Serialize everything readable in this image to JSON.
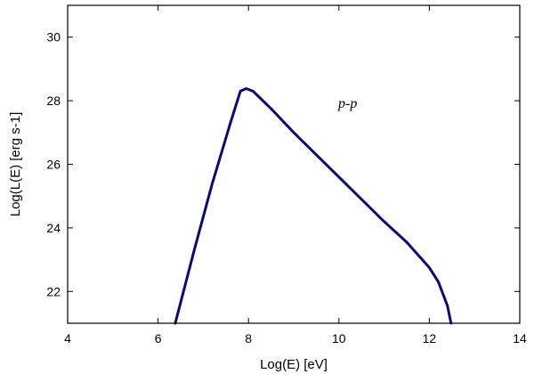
{
  "chart_data": {
    "type": "line",
    "title": "",
    "xlabel": "Log(E) [eV]",
    "ylabel": "Log(L(E) [erg s-1]",
    "xlim": [
      4,
      14
    ],
    "ylim": [
      21,
      31
    ],
    "xticks": [
      4,
      6,
      8,
      10,
      12,
      14
    ],
    "yticks": [
      22,
      24,
      26,
      28,
      30
    ],
    "grid": false,
    "line_color": "#0a0a78",
    "annotation": "p-p",
    "series": [
      {
        "x": [
          6.38,
          6.8,
          7.2,
          7.6,
          7.82,
          7.95,
          8.1,
          8.5,
          9.0,
          9.5,
          10.0,
          10.5,
          11.0,
          11.5,
          12.0,
          12.2,
          12.4,
          12.48
        ],
        "values": [
          21.0,
          23.3,
          25.4,
          27.3,
          28.3,
          28.38,
          28.3,
          27.75,
          27.0,
          26.3,
          25.6,
          24.9,
          24.2,
          23.55,
          22.75,
          22.3,
          21.55,
          21.0
        ]
      }
    ]
  }
}
